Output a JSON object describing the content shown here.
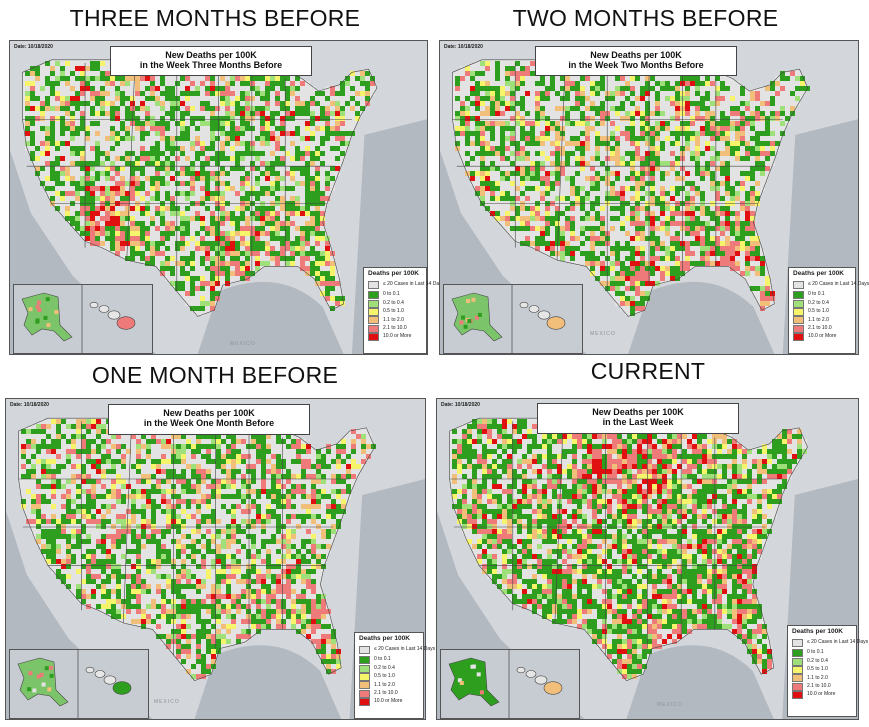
{
  "panels": [
    {
      "heading": "THREE MONTHS BEFORE",
      "date": "Date: 10/18/2020",
      "title_line1": "New Deaths per 100K",
      "title_line2": "in the Week Three Months Before",
      "sea_label": "MEXICO"
    },
    {
      "heading": "TWO MONTHS BEFORE",
      "date": "Date: 10/18/2020",
      "title_line1": "New Deaths per 100K",
      "title_line2": "in the Week Two Months Before",
      "sea_label": "MEXICO"
    },
    {
      "heading": "ONE MONTH BEFORE",
      "date": "Date: 10/18/2020",
      "title_line1": "New Deaths per 100K",
      "title_line2": "in the Week One Month Before",
      "sea_label": "MEXICO"
    },
    {
      "heading": "CURRENT",
      "date": "Date: 10/18/2020",
      "title_line1": "New Deaths per 100K",
      "title_line2": "in the Last Week",
      "sea_label": "MEXICO"
    }
  ],
  "legend": {
    "title": "Deaths per 100K",
    "items": [
      {
        "label": "≤ 20 Cases in Last 14 Days",
        "color": "#e3e3e3"
      },
      {
        "label": "0 to 0.1",
        "color": "#2e9e1f"
      },
      {
        "label": "0.2 to 0.4",
        "color": "#9fe07a"
      },
      {
        "label": "0.5 to 1.0",
        "color": "#f6f46a"
      },
      {
        "label": "1.1 to 2.0",
        "color": "#f2bf7a"
      },
      {
        "label": "2.1 to 10.0",
        "color": "#ee7a7a"
      },
      {
        "label": "10.0 or More",
        "color": "#e01010"
      }
    ]
  },
  "colors": {
    "map_background": "#b9bfc6",
    "land_base": "#e6e6e6",
    "border": "#555555"
  }
}
